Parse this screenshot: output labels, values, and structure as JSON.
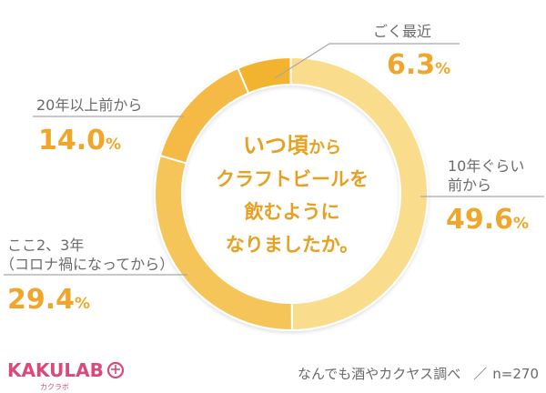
{
  "chart_data": {
    "type": "pie",
    "donut": true,
    "title": "いつ頃からクラフトビールを飲むようになりましたか。",
    "categories": [
      "ごく最近",
      "10年ぐらい前から",
      "ここ2、3年（コロナ禍になってから）",
      "20年以上前から"
    ],
    "values": [
      6.3,
      49.6,
      29.4,
      14.0
    ],
    "value_suffix": "%",
    "segments": [
      {
        "label": "ごく最近",
        "value": 6.3,
        "value_text": "6.3",
        "color": "#f2b42f"
      },
      {
        "label_lines": [
          "10年ぐらい",
          "前から"
        ],
        "value": 49.6,
        "value_text": "49.6",
        "color": "#f9dc8c"
      },
      {
        "label_lines": [
          "ここ2、3年",
          "（コロナ禍になってから）"
        ],
        "value": 29.4,
        "value_text": "29.4",
        "color": "#f6c55a"
      },
      {
        "label": "20年以上前から",
        "value": 14.0,
        "value_text": "14.0",
        "color": "#f4ba45"
      }
    ],
    "legend": "none"
  },
  "center_question": {
    "line1_bold": "いつ頃",
    "line1_rest": "から",
    "line2": "クラフトビールを",
    "line3": "飲むように",
    "line4": "なりましたか。"
  },
  "footer": {
    "source": "なんでも酒やカクヤス調べ",
    "separator": "／",
    "sample": "n=270"
  },
  "logo": {
    "text": "KAKULAB",
    "sub": "カクラボ"
  },
  "colors": {
    "accent": "#f0a62a",
    "label_gray": "#6a6a6a",
    "logo_pink": "#d94a7a"
  }
}
